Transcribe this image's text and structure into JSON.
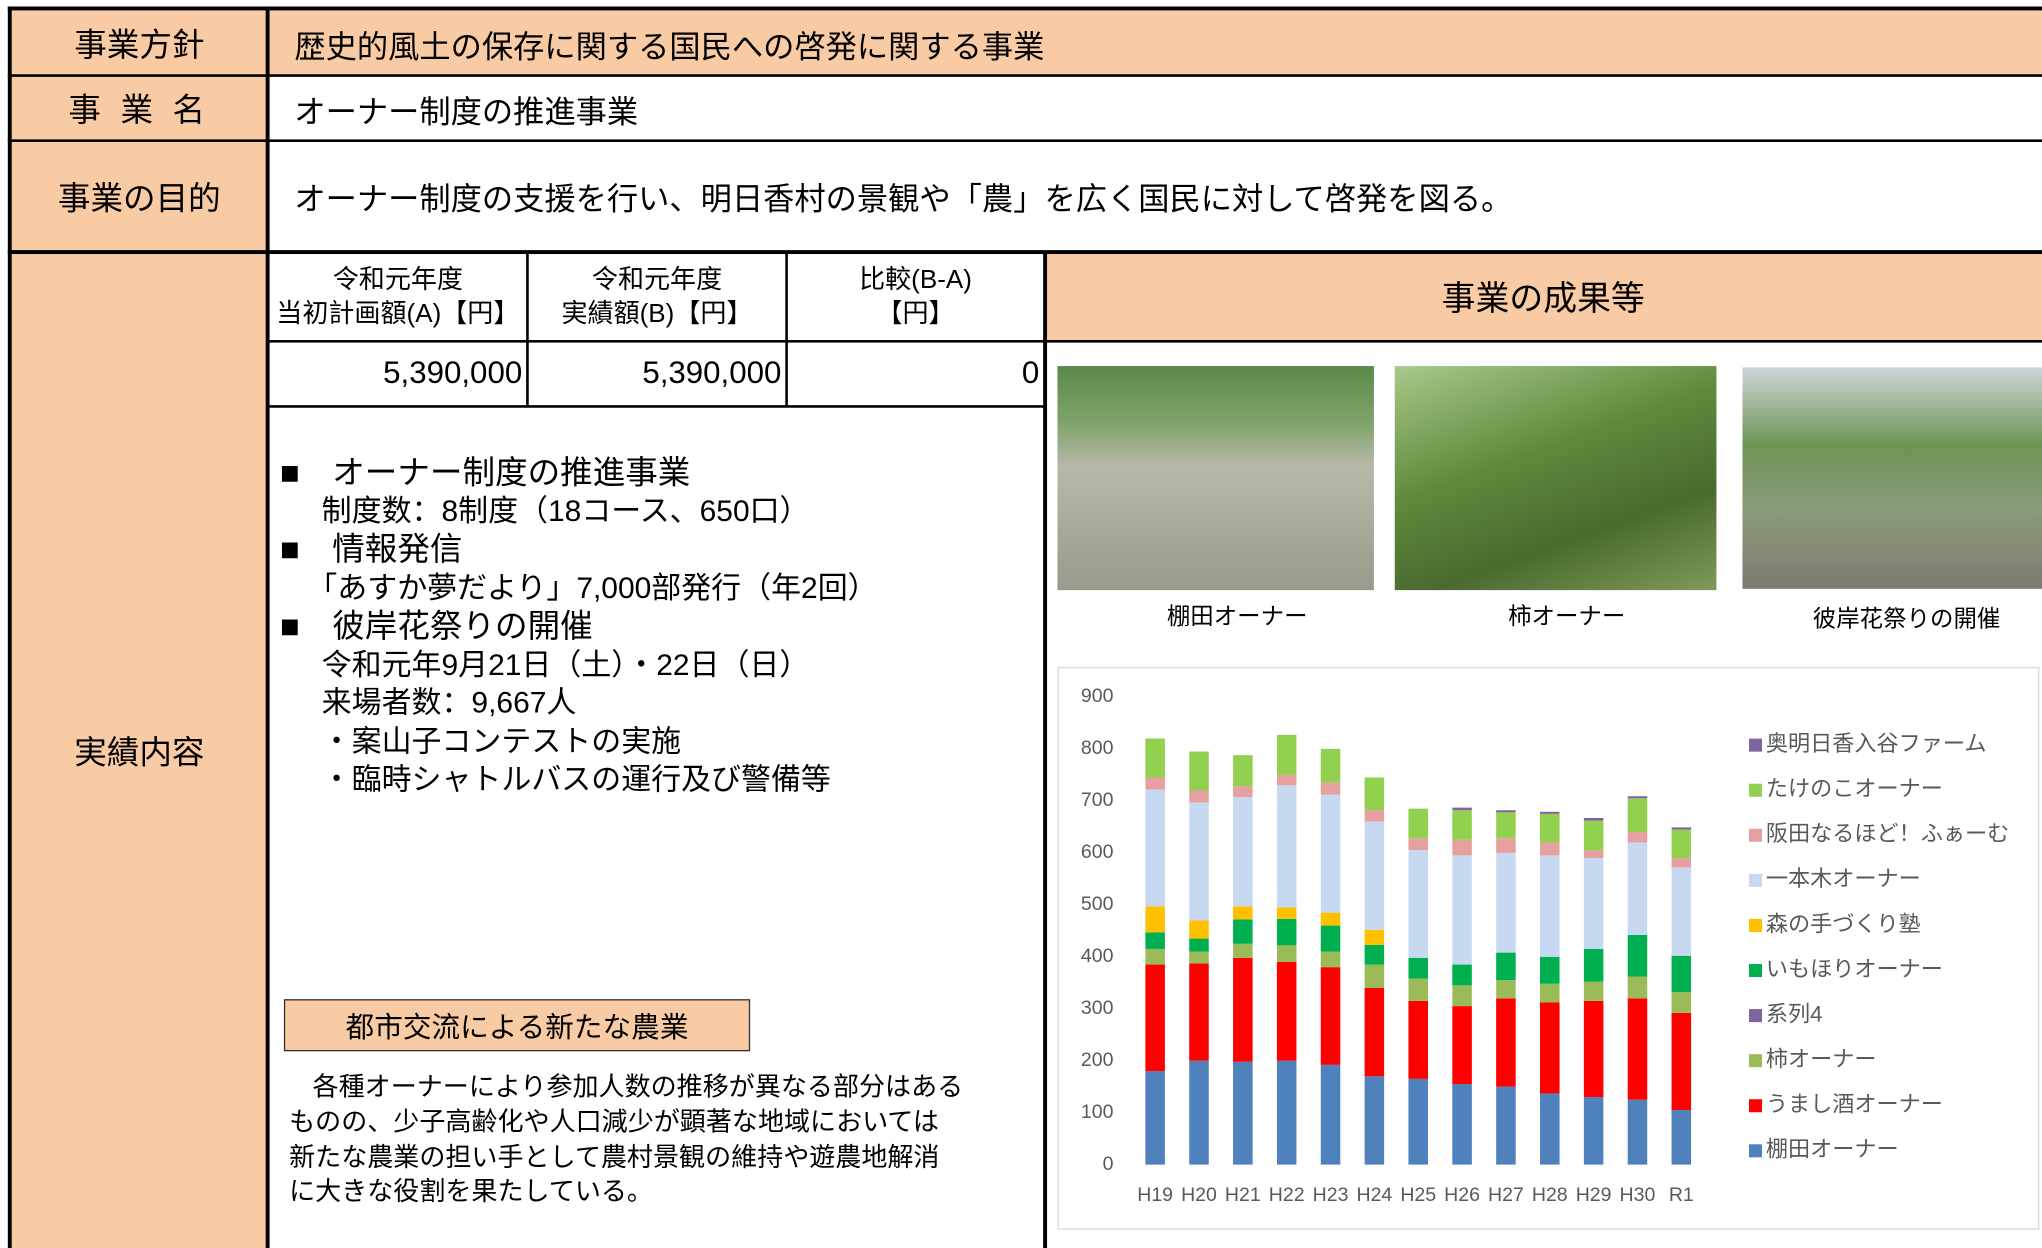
{
  "table": {
    "rows": [
      {
        "label": "事業方針",
        "value": "歴史的風土の保存に関する国民への啓発に関する事業"
      },
      {
        "label": "事 業 名",
        "value": "オーナー制度の推進事業"
      },
      {
        "label": "事業の目的",
        "value": "オーナー制度の支援を行い、明日香村の景観や「農」を広く国民に対して啓発を図る。"
      },
      {
        "label": "実績内容"
      }
    ]
  },
  "budget": {
    "headers": [
      [
        "令和元年度",
        "当初計画額(A)【円】"
      ],
      [
        "令和元年度",
        "実績額(B)【円】"
      ],
      [
        "比較(B-A)",
        "【円】"
      ]
    ],
    "values": [
      "5,390,000",
      "5,390,000",
      "0"
    ]
  },
  "content": {
    "lines": [
      "■　オーナー制度の推進事業",
      "制度数：8制度（18コース、650口）",
      "■　情報発信",
      "「あすか夢だより」7,000部発行（年2回）",
      "■　彼岸花祭りの開催",
      "令和元年9月21日（土）・22日（日）",
      "来場者数：9,667人",
      "・案山子コンテストの実施",
      "・臨時シャトルバスの運行及び警備等"
    ],
    "box_title": "都市交流による新たな農業",
    "summary": [
      "各種オーナーにより参加人数の推移が異なる部分はある",
      "ものの、少子高齢化や人口減少が顕著な地域においては",
      "新たな農業の担い手として農村景観の維持や遊農地解消",
      "に大きな役割を果たしている。"
    ]
  },
  "results": {
    "title": "事業の成果等",
    "photos": [
      "棚田オーナー",
      "柿オーナー",
      "彼岸花祭りの開催"
    ]
  },
  "chart_data": {
    "type": "stacked_bar",
    "categories": [
      "H19",
      "H20",
      "H21",
      "H22",
      "H23",
      "H24",
      "H25",
      "H26",
      "H27",
      "H28",
      "H29",
      "H30",
      "R1"
    ],
    "series": [
      {
        "name": "棚田オーナー",
        "color": "#4f81bd",
        "values": [
          180,
          200,
          198,
          200,
          192,
          170,
          165,
          155,
          150,
          137,
          130,
          125,
          105
        ]
      },
      {
        "name": "うまし酒オーナー",
        "color": "#ff0000",
        "values": [
          205,
          187,
          200,
          190,
          188,
          170,
          150,
          150,
          170,
          175,
          185,
          195,
          187
        ]
      },
      {
        "name": "柿オーナー",
        "color": "#9bbb59",
        "values": [
          30,
          23,
          27,
          32,
          30,
          45,
          43,
          40,
          35,
          36,
          37,
          42,
          40
        ]
      },
      {
        "name": "系列4",
        "color": "#8064a2",
        "values": [
          0,
          0,
          0,
          0,
          0,
          0,
          0,
          0,
          0,
          0,
          0,
          0,
          0
        ]
      },
      {
        "name": "いもほりオーナー",
        "color": "#00b050",
        "values": [
          32,
          25,
          47,
          51,
          50,
          38,
          40,
          40,
          53,
          52,
          63,
          80,
          70
        ]
      },
      {
        "name": "森の手づくり塾",
        "color": "#ffc000",
        "values": [
          50,
          35,
          25,
          22,
          25,
          29,
          0,
          0,
          0,
          0,
          0,
          0,
          0
        ]
      },
      {
        "name": "一本木オーナー",
        "color": "#c6d9f1",
        "values": [
          225,
          227,
          210,
          235,
          227,
          208,
          207,
          210,
          192,
          195,
          175,
          178,
          170
        ]
      },
      {
        "name": "阪田なるほど！ふぁーむ",
        "color": "#e6a0a0",
        "values": [
          23,
          23,
          21,
          20,
          23,
          22,
          23,
          30,
          28,
          25,
          15,
          20,
          18
        ]
      },
      {
        "name": "たけのこオーナー",
        "color": "#92d050",
        "values": [
          75,
          75,
          60,
          77,
          65,
          63,
          57,
          57,
          50,
          55,
          57,
          65,
          55
        ]
      },
      {
        "name": "奥明日香入谷ファーム",
        "color": "#8064a2",
        "values": [
          0,
          0,
          0,
          0,
          0,
          0,
          0,
          5,
          4,
          4,
          5,
          4,
          4
        ]
      }
    ],
    "ylim": [
      0,
      900
    ],
    "yticks": [
      0,
      100,
      200,
      300,
      400,
      500,
      600,
      700,
      800,
      900
    ],
    "grid": false,
    "legend": "right"
  }
}
